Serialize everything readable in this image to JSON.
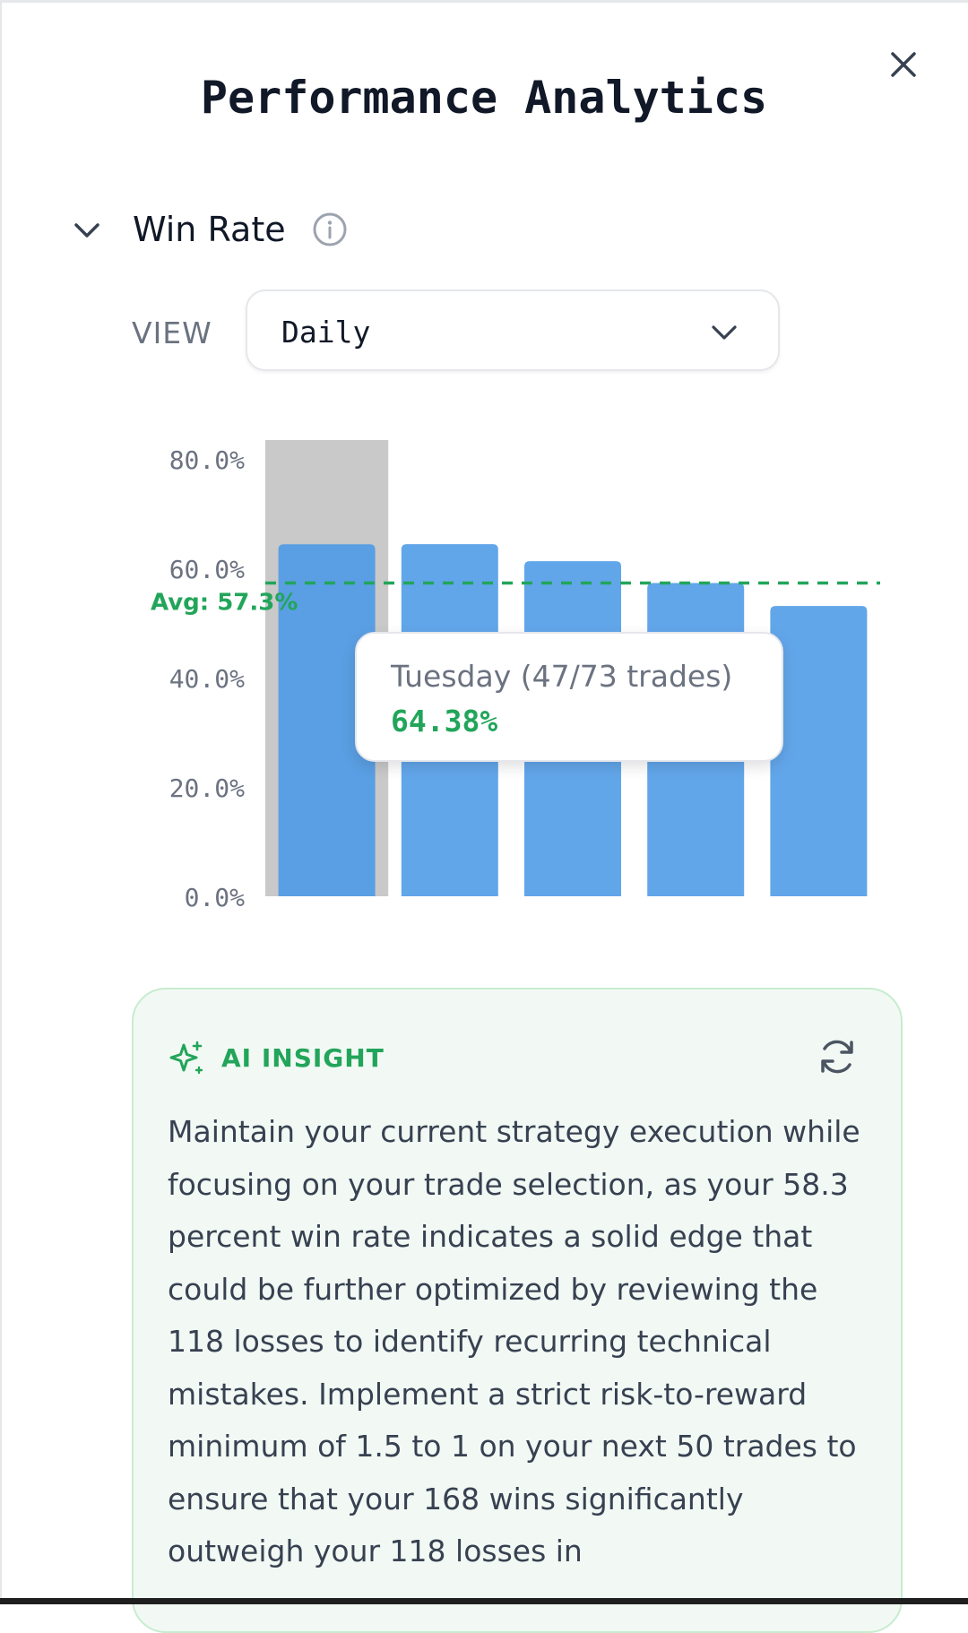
{
  "header": {
    "title": "Performance Analytics"
  },
  "section": {
    "title": "Win Rate"
  },
  "view": {
    "label": "VIEW",
    "selected": "Daily"
  },
  "colors": {
    "bar": "#62a6ea",
    "bar_selected": "#5a9fe3",
    "highlight": "#c9c9c9",
    "accent_green": "#22a55a"
  },
  "icons": {
    "close": "close-icon",
    "collapse": "chevron-down-icon",
    "info": "info-icon",
    "dropdown": "chevron-down-icon",
    "insight": "sparkle-icon",
    "refresh": "refresh-icon"
  },
  "chart_data": {
    "type": "bar",
    "categories": [
      "",
      "",
      "",
      "",
      ""
    ],
    "values": [
      64.38,
      64.4,
      61.3,
      57.3,
      53.1
    ],
    "ylim": [
      0,
      80
    ],
    "yticks": [
      "0.0%",
      "20.0%",
      "40.0%",
      "60.0%",
      "80.0%"
    ],
    "average": {
      "value": 57.3,
      "label": "Avg: 57.3%"
    },
    "highlighted_index": 0,
    "grid": false
  },
  "tooltip": {
    "label": "Tuesday (47/73 trades)",
    "value": "64.38%"
  },
  "insight": {
    "label": "AI INSIGHT",
    "text": "Maintain your current strategy execution while focusing on your trade selection, as your 58.3 percent win rate indicates a solid edge that could be further optimized by reviewing the 118 losses to identify recurring technical mistakes. Implement a strict risk-to-reward minimum of 1.5 to 1 on your next 50 trades to ensure that your 168 wins significantly outweigh your 118 losses in"
  }
}
